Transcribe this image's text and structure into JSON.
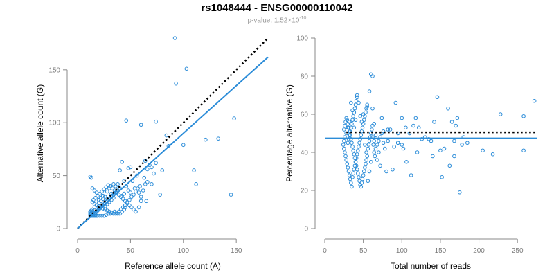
{
  "title": "rs1048444 - ENSG00000110042",
  "subtitle": {
    "label": "p-value: 1.52",
    "times": "×10",
    "exponent": "-10"
  },
  "colors": {
    "series": "#2b8cd8",
    "reference_line": "#000000",
    "axis": "#888888",
    "tick_text": "#7a7a7a"
  },
  "chart_data": [
    {
      "type": "scatter",
      "title": "",
      "xlabel": "Reference allele count (A)",
      "ylabel": "Alternative allele count (G)",
      "xlim": [
        0,
        180
      ],
      "ylim": [
        0,
        180
      ],
      "xticks": [
        0,
        50,
        100,
        150
      ],
      "yticks": [
        0,
        50,
        100,
        150
      ],
      "grid": false,
      "lines": [
        {
          "name": "expected",
          "style": "dotted",
          "x": [
            0,
            180
          ],
          "y": [
            0,
            180
          ]
        },
        {
          "name": "fit",
          "style": "solid",
          "x": [
            0,
            180
          ],
          "y": [
            0,
            162
          ]
        }
      ],
      "points": [
        [
          92,
          180
        ],
        [
          103,
          151
        ],
        [
          74,
          101
        ],
        [
          46,
          102
        ],
        [
          60,
          98
        ],
        [
          93,
          137
        ],
        [
          148,
          104
        ],
        [
          121,
          84
        ],
        [
          133,
          85
        ],
        [
          100,
          79
        ],
        [
          110,
          55
        ],
        [
          112,
          42
        ],
        [
          145,
          32
        ],
        [
          78,
          32
        ],
        [
          84,
          88
        ],
        [
          86,
          78
        ],
        [
          74,
          62
        ],
        [
          70,
          42
        ],
        [
          60,
          26
        ],
        [
          65,
          26
        ],
        [
          58,
          34
        ],
        [
          54,
          38
        ],
        [
          63,
          48
        ],
        [
          66,
          56
        ],
        [
          70,
          58
        ],
        [
          80,
          55
        ],
        [
          72,
          52
        ],
        [
          68,
          60
        ],
        [
          64,
          64
        ],
        [
          56,
          50
        ],
        [
          50,
          58
        ],
        [
          48,
          57
        ],
        [
          42,
          63
        ],
        [
          40,
          55
        ],
        [
          44,
          45
        ],
        [
          38,
          42
        ],
        [
          36,
          40
        ],
        [
          34,
          42
        ],
        [
          40,
          38
        ],
        [
          30,
          38
        ],
        [
          28,
          35
        ],
        [
          32,
          33
        ],
        [
          26,
          30
        ],
        [
          24,
          28
        ],
        [
          22,
          26
        ],
        [
          20,
          24
        ],
        [
          18,
          22
        ],
        [
          16,
          20
        ],
        [
          14,
          18
        ],
        [
          12,
          16
        ],
        [
          13,
          14
        ],
        [
          15,
          13
        ],
        [
          17,
          13
        ],
        [
          19,
          12
        ],
        [
          21,
          12
        ],
        [
          23,
          12
        ],
        [
          25,
          12
        ],
        [
          27,
          13
        ],
        [
          29,
          14
        ],
        [
          31,
          14
        ],
        [
          33,
          15
        ],
        [
          35,
          16
        ],
        [
          37,
          15
        ],
        [
          39,
          16
        ],
        [
          41,
          18
        ],
        [
          43,
          20
        ],
        [
          45,
          22
        ],
        [
          47,
          25
        ],
        [
          49,
          27
        ],
        [
          51,
          30
        ],
        [
          53,
          32
        ],
        [
          55,
          35
        ],
        [
          57,
          38
        ],
        [
          59,
          40
        ],
        [
          45,
          20
        ],
        [
          44,
          18
        ],
        [
          42,
          16
        ],
        [
          40,
          14
        ],
        [
          38,
          14
        ],
        [
          36,
          14
        ],
        [
          34,
          14
        ],
        [
          32,
          15
        ],
        [
          30,
          16
        ],
        [
          28,
          17
        ],
        [
          26,
          18
        ],
        [
          24,
          19
        ],
        [
          22,
          20
        ],
        [
          20,
          21
        ],
        [
          18,
          22
        ],
        [
          16,
          23
        ],
        [
          14,
          25
        ],
        [
          15,
          27
        ],
        [
          17,
          29
        ],
        [
          19,
          31
        ],
        [
          21,
          33
        ],
        [
          23,
          35
        ],
        [
          25,
          37
        ],
        [
          27,
          39
        ],
        [
          29,
          41
        ],
        [
          31,
          40
        ],
        [
          33,
          38
        ],
        [
          35,
          36
        ],
        [
          37,
          34
        ],
        [
          39,
          32
        ],
        [
          41,
          30
        ],
        [
          43,
          28
        ],
        [
          45,
          26
        ],
        [
          47,
          24
        ],
        [
          49,
          22
        ],
        [
          51,
          20
        ],
        [
          53,
          18
        ],
        [
          55,
          16
        ],
        [
          12,
          12
        ],
        [
          13,
          12
        ],
        [
          14,
          12
        ],
        [
          15,
          12
        ],
        [
          16,
          12
        ],
        [
          17,
          12
        ],
        [
          18,
          12
        ],
        [
          12,
          13
        ],
        [
          12,
          14
        ],
        [
          12,
          15
        ],
        [
          12,
          16
        ],
        [
          13,
          17
        ],
        [
          14,
          16
        ],
        [
          15,
          15
        ],
        [
          16,
          14
        ],
        [
          17,
          15
        ],
        [
          18,
          16
        ],
        [
          19,
          17
        ],
        [
          20,
          18
        ],
        [
          21,
          19
        ],
        [
          22,
          20
        ],
        [
          23,
          21
        ],
        [
          24,
          22
        ],
        [
          25,
          23
        ],
        [
          26,
          24
        ],
        [
          27,
          25
        ],
        [
          28,
          26
        ],
        [
          29,
          27
        ],
        [
          30,
          28
        ],
        [
          31,
          29
        ],
        [
          32,
          30
        ],
        [
          33,
          31
        ],
        [
          34,
          32
        ],
        [
          35,
          33
        ],
        [
          36,
          34
        ],
        [
          37,
          35
        ],
        [
          38,
          36
        ],
        [
          12,
          49
        ],
        [
          13,
          48
        ],
        [
          58,
          20
        ],
        [
          60,
          30
        ],
        [
          62,
          36
        ],
        [
          64,
          42
        ],
        [
          66,
          44
        ],
        [
          52,
          45
        ],
        [
          46,
          40
        ],
        [
          48,
          36
        ],
        [
          50,
          34
        ],
        [
          44,
          33
        ],
        [
          42,
          31
        ],
        [
          26,
          21
        ],
        [
          28,
          23
        ],
        [
          30,
          25
        ],
        [
          32,
          27
        ],
        [
          34,
          29
        ],
        [
          20,
          27
        ],
        [
          22,
          29
        ],
        [
          24,
          31
        ],
        [
          18,
          34
        ],
        [
          16,
          36
        ],
        [
          14,
          38
        ]
      ]
    },
    {
      "type": "scatter",
      "title": "",
      "xlabel": "Total number of reads",
      "ylabel": "Percentage alternative (G)",
      "xlim": [
        0,
        275
      ],
      "ylim": [
        0,
        100
      ],
      "xticks": [
        0,
        50,
        100,
        150,
        200,
        250
      ],
      "yticks": [
        0,
        20,
        40,
        60,
        80,
        100
      ],
      "grid": false,
      "lines": [
        {
          "name": "expected",
          "style": "dotted",
          "x": [
            28,
            275
          ],
          "y": [
            50.5,
            50.5
          ]
        },
        {
          "name": "fit",
          "style": "solid",
          "x": [
            0,
            275
          ],
          "y": [
            47.4,
            47.4
          ]
        }
      ],
      "points": [
        [
          60,
          81
        ],
        [
          62,
          80
        ],
        [
          58,
          72
        ],
        [
          62,
          63
        ],
        [
          62,
          54
        ],
        [
          55,
          64
        ],
        [
          64,
          55
        ],
        [
          74,
          58
        ],
        [
          76,
          51
        ],
        [
          82,
          52
        ],
        [
          85,
          52
        ],
        [
          92,
          66
        ],
        [
          100,
          58
        ],
        [
          95,
          50
        ],
        [
          95,
          45
        ],
        [
          100,
          44
        ],
        [
          105,
          53
        ],
        [
          110,
          50
        ],
        [
          115,
          54
        ],
        [
          118,
          58
        ],
        [
          122,
          53
        ],
        [
          130,
          48
        ],
        [
          135,
          47
        ],
        [
          140,
          38
        ],
        [
          146,
          69
        ],
        [
          150,
          41
        ],
        [
          152,
          27
        ],
        [
          155,
          42
        ],
        [
          160,
          63
        ],
        [
          165,
          56
        ],
        [
          170,
          54
        ],
        [
          172,
          58
        ],
        [
          175,
          19
        ],
        [
          178,
          44
        ],
        [
          180,
          48
        ],
        [
          185,
          45
        ],
        [
          205,
          41
        ],
        [
          218,
          39
        ],
        [
          228,
          60
        ],
        [
          258,
          59
        ],
        [
          258,
          41
        ],
        [
          272,
          67
        ],
        [
          95,
          45
        ],
        [
          88,
          31
        ],
        [
          90,
          43
        ],
        [
          102,
          42
        ],
        [
          106,
          35
        ],
        [
          112,
          28
        ],
        [
          120,
          40
        ],
        [
          126,
          47
        ],
        [
          138,
          46
        ],
        [
          142,
          56
        ],
        [
          162,
          33
        ],
        [
          168,
          38
        ],
        [
          168,
          46
        ],
        [
          80,
          30
        ],
        [
          82,
          46
        ],
        [
          70,
          40
        ],
        [
          68,
          36
        ],
        [
          72,
          33
        ],
        [
          66,
          49
        ],
        [
          64,
          46
        ],
        [
          60,
          35
        ],
        [
          58,
          30
        ],
        [
          56,
          25
        ],
        [
          54,
          40
        ],
        [
          52,
          44
        ],
        [
          50,
          60
        ],
        [
          48,
          56
        ],
        [
          46,
          59
        ],
        [
          44,
          66
        ],
        [
          42,
          70
        ],
        [
          40,
          57
        ],
        [
          38,
          53
        ],
        [
          36,
          62
        ],
        [
          34,
          66
        ],
        [
          32,
          56
        ],
        [
          30,
          53
        ],
        [
          28,
          50
        ],
        [
          26,
          48
        ],
        [
          25,
          46
        ],
        [
          24,
          44
        ],
        [
          25,
          42
        ],
        [
          26,
          40
        ],
        [
          27,
          38
        ],
        [
          28,
          36
        ],
        [
          29,
          34
        ],
        [
          30,
          32
        ],
        [
          31,
          30
        ],
        [
          32,
          28
        ],
        [
          33,
          26
        ],
        [
          34,
          24
        ],
        [
          35,
          22
        ],
        [
          36,
          27
        ],
        [
          37,
          29
        ],
        [
          38,
          31
        ],
        [
          39,
          33
        ],
        [
          40,
          35
        ],
        [
          41,
          37
        ],
        [
          42,
          39
        ],
        [
          43,
          41
        ],
        [
          44,
          43
        ],
        [
          45,
          45
        ],
        [
          46,
          47
        ],
        [
          47,
          49
        ],
        [
          48,
          51
        ],
        [
          49,
          53
        ],
        [
          50,
          55
        ],
        [
          51,
          57
        ],
        [
          52,
          59
        ],
        [
          53,
          61
        ],
        [
          54,
          63
        ],
        [
          55,
          65
        ],
        [
          30,
          45
        ],
        [
          31,
          47
        ],
        [
          32,
          49
        ],
        [
          33,
          51
        ],
        [
          34,
          53
        ],
        [
          35,
          55
        ],
        [
          36,
          57
        ],
        [
          37,
          59
        ],
        [
          38,
          61
        ],
        [
          39,
          63
        ],
        [
          40,
          65
        ],
        [
          41,
          67
        ],
        [
          42,
          69
        ],
        [
          25,
          52
        ],
        [
          26,
          54
        ],
        [
          27,
          56
        ],
        [
          28,
          58
        ],
        [
          29,
          57
        ],
        [
          30,
          55
        ],
        [
          31,
          53
        ],
        [
          32,
          51
        ],
        [
          33,
          49
        ],
        [
          34,
          47
        ],
        [
          35,
          45
        ],
        [
          36,
          43
        ],
        [
          37,
          41
        ],
        [
          38,
          39
        ],
        [
          39,
          37
        ],
        [
          40,
          35
        ],
        [
          41,
          33
        ],
        [
          42,
          31
        ],
        [
          43,
          29
        ],
        [
          44,
          27
        ],
        [
          45,
          25
        ],
        [
          46,
          23
        ],
        [
          47,
          22
        ],
        [
          48,
          24
        ],
        [
          49,
          26
        ],
        [
          50,
          28
        ],
        [
          51,
          30
        ],
        [
          52,
          32
        ],
        [
          53,
          34
        ],
        [
          54,
          36
        ],
        [
          55,
          38
        ],
        [
          56,
          42
        ],
        [
          57,
          44
        ],
        [
          58,
          46
        ],
        [
          59,
          48
        ],
        [
          60,
          50
        ],
        [
          61,
          52
        ],
        [
          62,
          48
        ],
        [
          63,
          44
        ],
        [
          64,
          40
        ],
        [
          65,
          38
        ],
        [
          66,
          42
        ],
        [
          68,
          44
        ],
        [
          70,
          46
        ],
        [
          72,
          48
        ],
        [
          74,
          50
        ],
        [
          76,
          45
        ],
        [
          78,
          42
        ]
      ]
    }
  ]
}
